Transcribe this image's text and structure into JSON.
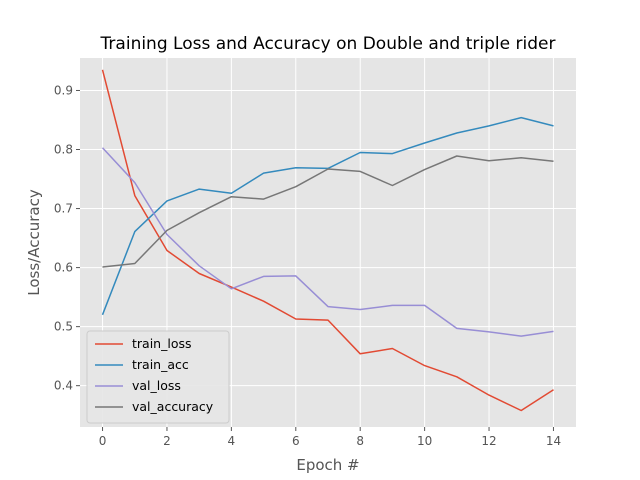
{
  "chart_data": {
    "type": "line",
    "title": "Training Loss and Accuracy on Double and triple rider",
    "xlabel": "Epoch #",
    "ylabel": "Loss/Accuracy",
    "x": [
      0,
      1,
      2,
      3,
      4,
      5,
      6,
      7,
      8,
      9,
      10,
      11,
      12,
      13,
      14
    ],
    "xlim": [
      -0.7,
      14.7
    ],
    "ylim": [
      0.33,
      0.955
    ],
    "xticks": [
      0,
      2,
      4,
      6,
      8,
      10,
      12,
      14
    ],
    "yticks": [
      0.4,
      0.5,
      0.6,
      0.7,
      0.8,
      0.9
    ],
    "grid": true,
    "legend_position": "lower-left",
    "series": [
      {
        "name": "train_loss",
        "color": "#E24A33",
        "values": [
          0.935,
          0.722,
          0.629,
          0.59,
          0.567,
          0.543,
          0.513,
          0.511,
          0.454,
          0.463,
          0.434,
          0.415,
          0.384,
          0.358,
          0.393
        ]
      },
      {
        "name": "train_acc",
        "color": "#348ABD",
        "values": [
          0.52,
          0.661,
          0.713,
          0.733,
          0.726,
          0.76,
          0.769,
          0.768,
          0.795,
          0.793,
          0.811,
          0.828,
          0.84,
          0.854,
          0.84
        ]
      },
      {
        "name": "val_loss",
        "color": "#988ED5",
        "values": [
          0.803,
          0.744,
          0.656,
          0.603,
          0.564,
          0.585,
          0.586,
          0.534,
          0.529,
          0.536,
          0.536,
          0.497,
          0.491,
          0.484,
          0.492
        ]
      },
      {
        "name": "val_accuracy",
        "color": "#777777",
        "values": [
          0.601,
          0.607,
          0.663,
          0.693,
          0.72,
          0.716,
          0.737,
          0.767,
          0.763,
          0.739,
          0.766,
          0.789,
          0.781,
          0.786,
          0.78
        ]
      }
    ]
  }
}
